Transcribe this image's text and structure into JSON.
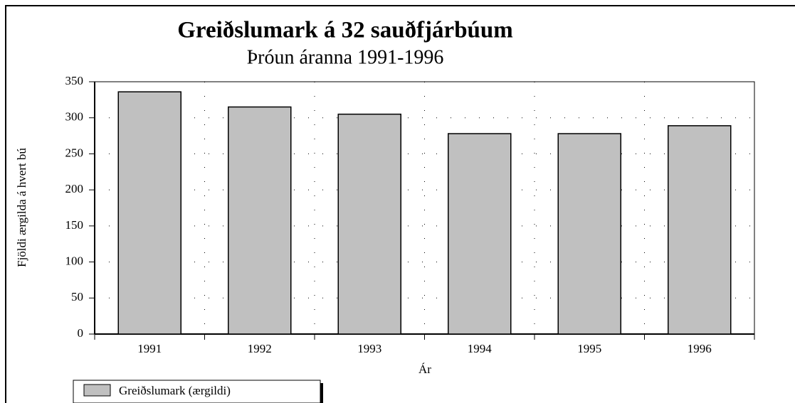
{
  "chart_data": {
    "type": "bar",
    "title": "Greiðslumark á 32 sauðfjárbúum",
    "subtitle": "Þróun áranna 1991-1996",
    "x_label": "Ár",
    "y_label": "Fjöldi ærgilda á hvert bú",
    "categories": [
      "1991",
      "1992",
      "1993",
      "1994",
      "1995",
      "1996"
    ],
    "series": [
      {
        "name": "Greiðslumark (ærgildi)",
        "color": "#c0c0c0",
        "values": [
          336,
          315,
          305,
          278,
          278,
          289
        ]
      }
    ],
    "ylim": [
      0,
      350
    ],
    "yticks": [
      0,
      50,
      100,
      150,
      200,
      250,
      300,
      350
    ],
    "grid": true,
    "legend": "bottom-left"
  }
}
